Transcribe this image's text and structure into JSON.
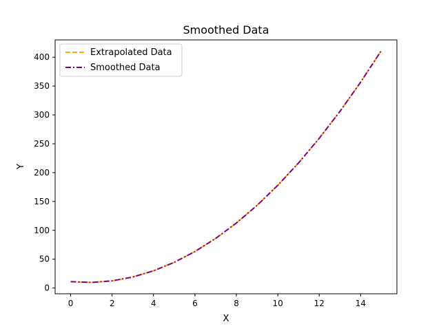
{
  "chart_data": {
    "type": "line",
    "title": "Smoothed Data",
    "xlabel": "X",
    "ylabel": "Y",
    "xlim": [
      -0.75,
      15.75
    ],
    "ylim": [
      -10,
      430
    ],
    "xticks": [
      0,
      2,
      4,
      6,
      8,
      10,
      12,
      14
    ],
    "yticks": [
      0,
      50,
      100,
      150,
      200,
      250,
      300,
      350,
      400
    ],
    "grid": false,
    "legend_position": "upper-left",
    "series": [
      {
        "name": "Extrapolated Data",
        "color": "#ffa500",
        "line_style": "dashed",
        "x": [
          0,
          1,
          2,
          3,
          4,
          5,
          6,
          7,
          8,
          9,
          10,
          11,
          12,
          13,
          14,
          15
        ],
        "y": [
          11,
          9.7,
          12.4,
          19.1,
          29.8,
          44.5,
          63.2,
          85.9,
          112.6,
          143.3,
          178,
          216.7,
          259.4,
          306.1,
          356.8,
          411.5
        ]
      },
      {
        "name": "Smoothed Data",
        "color": "#800080",
        "line_style": "dashdot",
        "x": [
          0,
          1,
          2,
          3,
          4,
          5,
          6,
          7,
          8,
          9,
          10,
          11,
          12,
          13,
          14,
          15
        ],
        "y": [
          11,
          9.7,
          12.4,
          19.1,
          29.8,
          44.5,
          63.2,
          85.9,
          112.6,
          143.3,
          178,
          216.7,
          259.4,
          306.1,
          356.8,
          411.5
        ]
      }
    ]
  }
}
